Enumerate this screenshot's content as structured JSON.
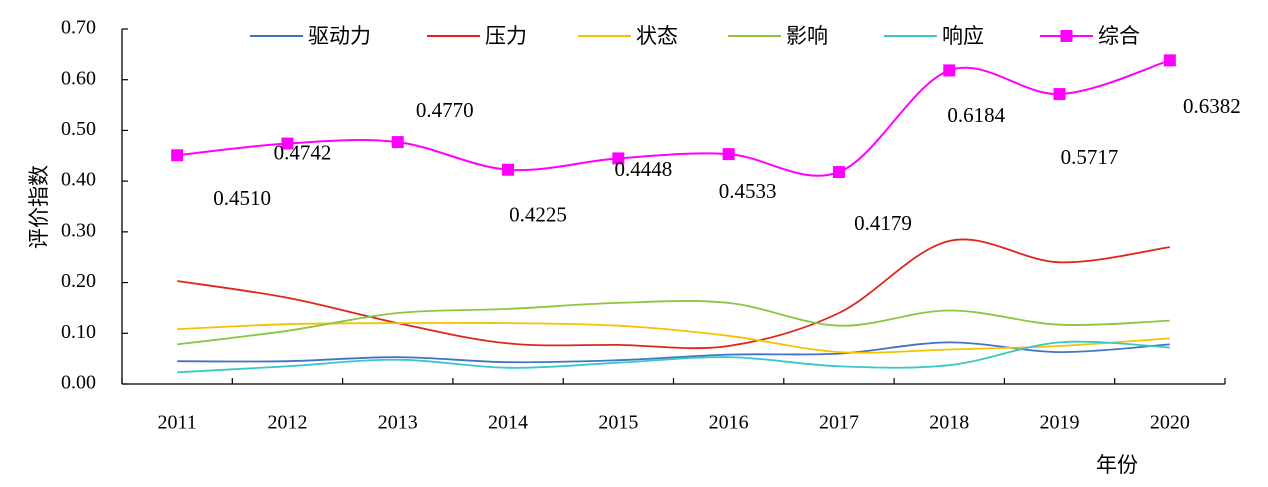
{
  "chart_data": {
    "type": "line",
    "title": "",
    "xlabel": "年份",
    "ylabel": "评价指数",
    "categories": [
      "2011",
      "2012",
      "2013",
      "2014",
      "2015",
      "2016",
      "2017",
      "2018",
      "2019",
      "2020"
    ],
    "ylim": [
      0,
      0.7
    ],
    "yticks": [
      "0.00",
      "0.10",
      "0.20",
      "0.30",
      "0.40",
      "0.50",
      "0.60",
      "0.70"
    ],
    "grid": false,
    "legend_position": "top",
    "series": [
      {
        "name": "驱动力",
        "color": "#4472c4",
        "marker": false,
        "values": [
          0.045,
          0.045,
          0.053,
          0.043,
          0.047,
          0.058,
          0.06,
          0.082,
          0.063,
          0.078
        ]
      },
      {
        "name": "压力",
        "color": "#e0251b",
        "marker": false,
        "values": [
          0.203,
          0.17,
          0.12,
          0.08,
          0.077,
          0.075,
          0.14,
          0.282,
          0.24,
          0.27
        ]
      },
      {
        "name": "状态",
        "color": "#f5c200",
        "marker": false,
        "values": [
          0.108,
          0.118,
          0.12,
          0.12,
          0.115,
          0.095,
          0.063,
          0.068,
          0.075,
          0.09
        ]
      },
      {
        "name": "影响",
        "color": "#8cc63f",
        "marker": false,
        "values": [
          0.078,
          0.105,
          0.14,
          0.148,
          0.16,
          0.16,
          0.115,
          0.145,
          0.117,
          0.125
        ]
      },
      {
        "name": "响应",
        "color": "#39c8c8",
        "marker": false,
        "values": [
          0.023,
          0.035,
          0.048,
          0.032,
          0.042,
          0.053,
          0.035,
          0.037,
          0.082,
          0.072
        ]
      },
      {
        "name": "综合",
        "color": "#ff00ff",
        "marker": true,
        "values": [
          0.451,
          0.4742,
          0.477,
          0.4225,
          0.4448,
          0.4533,
          0.4179,
          0.6184,
          0.5717,
          0.6382
        ],
        "labels": [
          "0.4510",
          "0.4742",
          "0.4770",
          "0.4225",
          "0.4448",
          "0.4533",
          "0.4179",
          "0.6184",
          "0.5717",
          "0.6382"
        ]
      }
    ]
  }
}
